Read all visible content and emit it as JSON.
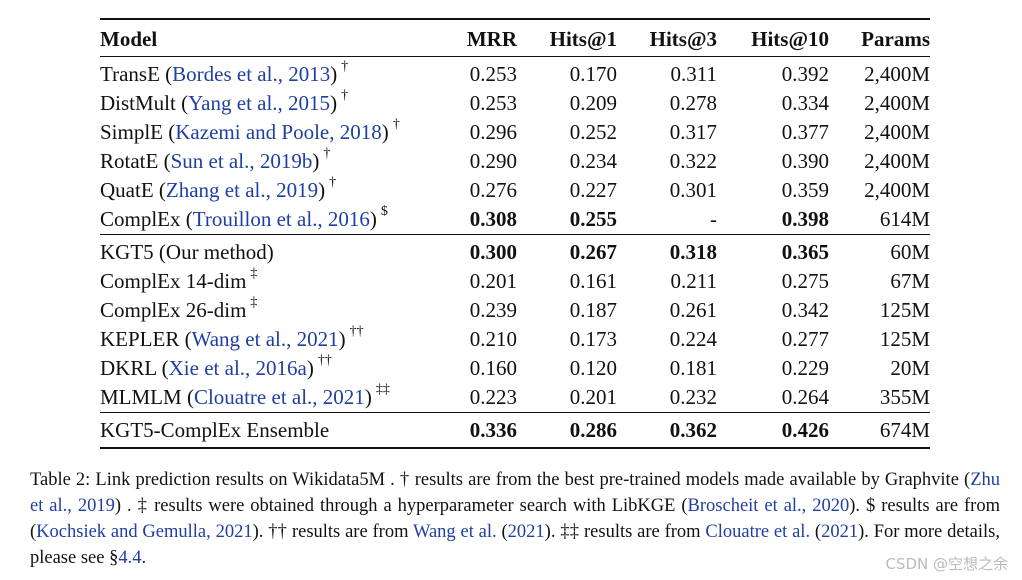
{
  "table": {
    "headers": [
      "Model",
      "MRR",
      "Hits@1",
      "Hits@3",
      "Hits@10",
      "Params"
    ],
    "groups": [
      [
        {
          "name": "TransE",
          "cite": "Bordes et al., 2013",
          "mark": "†",
          "mrr": "0.253",
          "h1": "0.170",
          "h3": "0.311",
          "h10": "0.392",
          "params": "2,400M"
        },
        {
          "name": "DistMult",
          "cite": "Yang et al., 2015",
          "mark": "†",
          "mrr": "0.253",
          "h1": "0.209",
          "h3": "0.278",
          "h10": "0.334",
          "params": "2,400M"
        },
        {
          "name": "SimplE",
          "cite": "Kazemi and Poole, 2018",
          "mark": "†",
          "mrr": "0.296",
          "h1": "0.252",
          "h3": "0.317",
          "h10": "0.377",
          "params": "2,400M"
        },
        {
          "name": "RotatE",
          "cite": "Sun et al., 2019b",
          "mark": "†",
          "mrr": "0.290",
          "h1": "0.234",
          "h3": "0.322",
          "h10": "0.390",
          "params": "2,400M"
        },
        {
          "name": "QuatE",
          "cite": "Zhang et al., 2019",
          "mark": "†",
          "mrr": "0.276",
          "h1": "0.227",
          "h3": "0.301",
          "h10": "0.359",
          "params": "2,400M"
        },
        {
          "name": "ComplEx",
          "cite": "Trouillon et al., 2016",
          "mark": "$",
          "mrr": "0.308",
          "h1": "0.255",
          "h3": "-",
          "h10": "0.398",
          "params": "614M",
          "bold": [
            "mrr",
            "h1",
            "h10"
          ]
        }
      ],
      [
        {
          "name": "KGT5 (Our method)",
          "cite": "",
          "mark": "",
          "mrr": "0.300",
          "h1": "0.267",
          "h3": "0.318",
          "h10": "0.365",
          "params": "60M",
          "bold": [
            "mrr",
            "h1",
            "h3",
            "h10"
          ]
        },
        {
          "name": "ComplEx 14-dim",
          "cite": "",
          "mark": "‡",
          "mrr": "0.201",
          "h1": "0.161",
          "h3": "0.211",
          "h10": "0.275",
          "params": "67M"
        },
        {
          "name": "ComplEx 26-dim",
          "cite": "",
          "mark": "‡",
          "mrr": "0.239",
          "h1": "0.187",
          "h3": "0.261",
          "h10": "0.342",
          "params": "125M"
        },
        {
          "name": "KEPLER",
          "cite": "Wang et al., 2021",
          "mark": "††",
          "mrr": "0.210",
          "h1": "0.173",
          "h3": "0.224",
          "h10": "0.277",
          "params": "125M"
        },
        {
          "name": "DKRL",
          "cite": "Xie et al., 2016a",
          "mark": "††",
          "mrr": "0.160",
          "h1": "0.120",
          "h3": "0.181",
          "h10": "0.229",
          "params": "20M"
        },
        {
          "name": "MLMLM",
          "cite": "Clouatre et al., 2021",
          "mark": "‡‡",
          "mrr": "0.223",
          "h1": "0.201",
          "h3": "0.232",
          "h10": "0.264",
          "params": "355M"
        }
      ],
      [
        {
          "name": "KGT5-ComplEx Ensemble",
          "cite": "",
          "mark": "",
          "mrr": "0.336",
          "h1": "0.286",
          "h3": "0.362",
          "h10": "0.426",
          "params": "674M",
          "bold": [
            "mrr",
            "h1",
            "h3",
            "h10"
          ]
        }
      ]
    ]
  },
  "caption": {
    "p1": "Table 2: Link prediction results on Wikidata5M . † results are from the best pre-trained models made available by Graphvite (",
    "c1": "Zhu et al., 2019",
    "p2": ") . ‡ results were obtained through a hyperparameter search with LibKGE (",
    "c2": "Broscheit et al., 2020",
    "p3": "). $ results are from (",
    "c3": "Kochsiek and Gemulla, 2021",
    "p4": "). †† results are from ",
    "c4": "Wang et al.",
    "p5": " (",
    "c5": "2021",
    "p6": "). ‡‡ results are from ",
    "c6": "Clouatre et al.",
    "p7": " (",
    "c7": "2021",
    "p8": "). For more details, please see §",
    "c8": "4.4",
    "p9": "."
  },
  "watermark": "CSDN @空想之余"
}
